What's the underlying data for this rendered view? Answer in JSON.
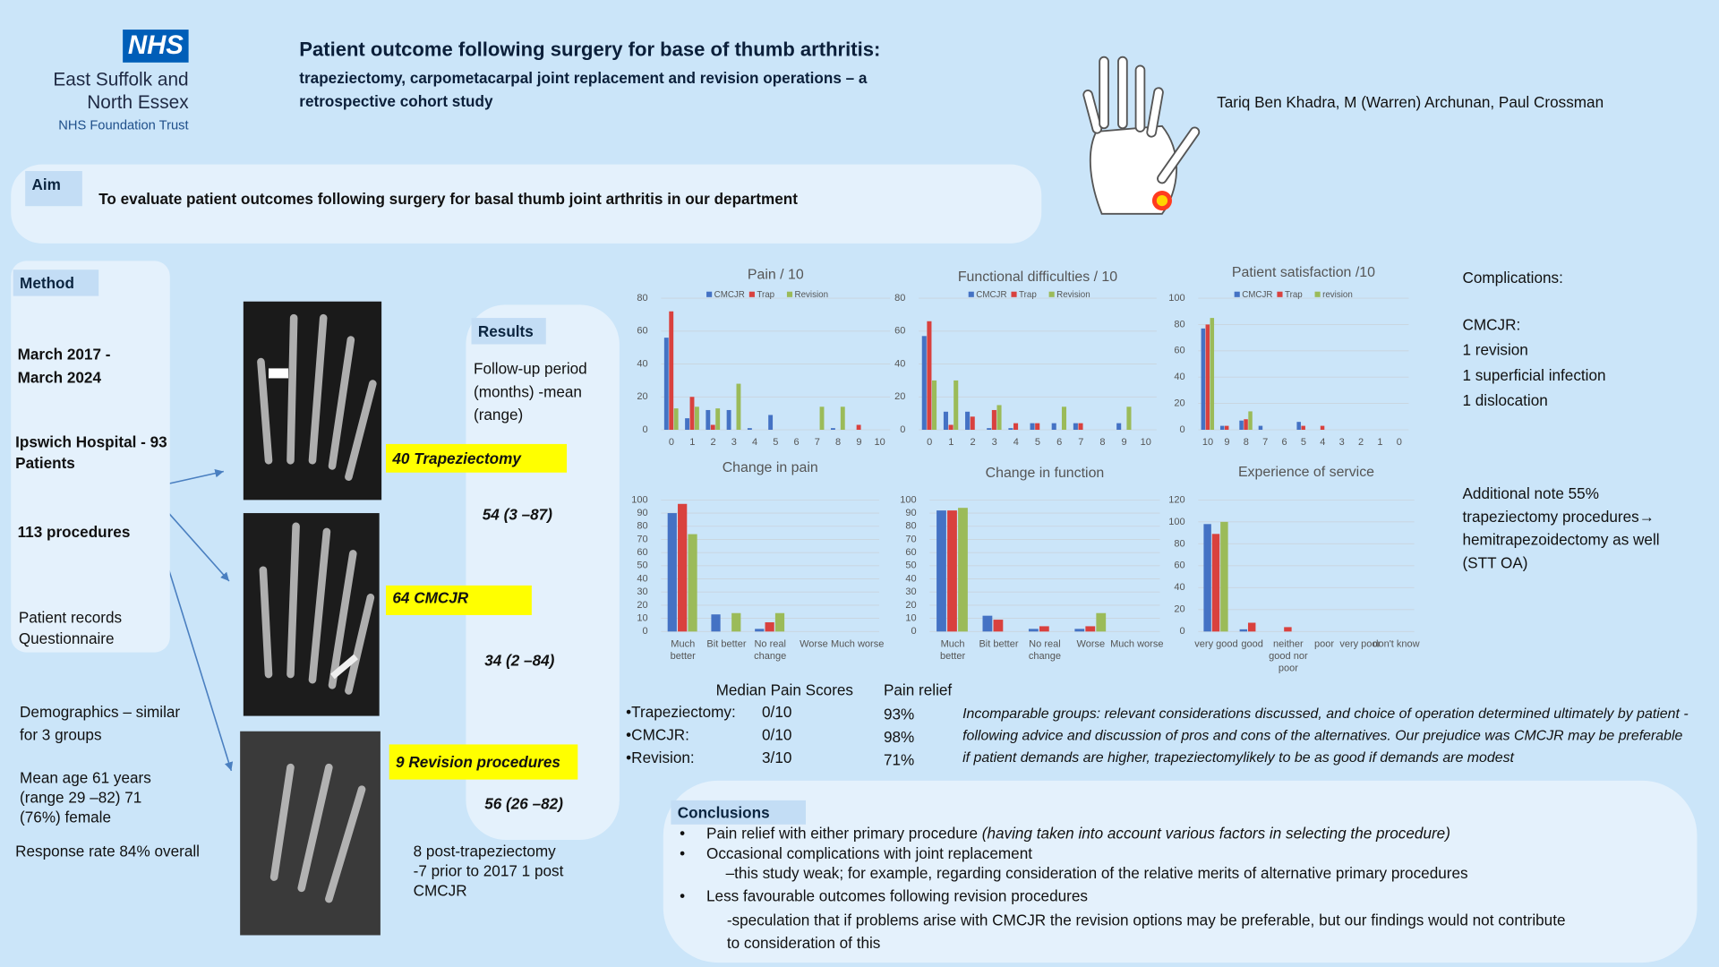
{
  "header": {
    "logo": "NHS",
    "org": [
      "East Suffolk and",
      "North Essex",
      "NHS Foundation Trust"
    ],
    "title": "Patient outcome following surgery for base of thumb arthritis:",
    "subtitle": "trapeziectomy, carpometacarpal joint replacement and revision operations – a retrospective cohort study",
    "authors": "Tariq Ben Khadra, M (Warren) Archunan, Paul Crossman"
  },
  "aim": {
    "label": "Aim",
    "text": "To evaluate  patient outcomes following surgery for basal thumb joint arthritis in our department"
  },
  "method": {
    "label": "Method",
    "items": [
      "March 2017 - March 2024",
      "Ipswich Hospital - 93 Patients",
      "113 procedures",
      "Patient records Questionnaire"
    ]
  },
  "demographics": [
    "Demographics – similar for 3 groups",
    "Mean age 61 years (range 29 –82) 71 (76%) female",
    "Response rate 84% overall"
  ],
  "results": {
    "label": "Results",
    "followup_heading": "Follow-up period (months) -mean (range)",
    "groups": [
      {
        "name": "40 Trapeziectomy",
        "followup": "54 (3 –87)"
      },
      {
        "name": "64 CMCJR",
        "followup": "34 (2 –84)"
      },
      {
        "name": "9 Revision procedures",
        "followup": "56 (26 –82)"
      }
    ],
    "revision_note": "8 post-trapeziectomy -7 prior to 2017 1 post CMCJR"
  },
  "pain_table": {
    "headers": [
      "Median Pain Scores",
      "Pain relief"
    ],
    "rows": [
      [
        "•Trapeziectomy:",
        "0/10",
        "93%"
      ],
      [
        "•CMCJR:",
        "0/10",
        "98%"
      ],
      [
        "•Revision:",
        "3/10",
        "71%"
      ]
    ]
  },
  "note": "Incomparable groups: relevant considerations discussed, and choice of operation determined ultimately by patient -following advice and discussion of pros and cons of the alternatives. Our prejudice was CMCJR may be preferable if patient demands are higher, trapeziectomylikely to be as good if demands are modest",
  "complications": [
    "Complications:",
    "CMCJR:",
    "1 revision",
    "1 superficial infection",
    "1 dislocation"
  ],
  "additional_note": "Additional note 55% trapeziectomy procedures→ hemitrapezoidectomy as well (STT OA)",
  "conclusions": {
    "label": "Conclusions",
    "items": [
      {
        "text": "Pain relief with either primary procedure",
        "note": "(having taken into account various factors in selecting the procedure)"
      },
      {
        "text": "Occasional complications with joint replacement",
        "sub": "–this study weak; for example, regarding consideration of the relative merits of alternative primary procedures"
      },
      {
        "text": "Less favourable outcomes following revision procedures",
        "sub": "-speculation that if problems arise with CMCJR the revision options may be preferable, but our findings would not contribute to consideration of this"
      }
    ]
  },
  "chart_data": [
    {
      "type": "bar",
      "title": "Pain / 10",
      "grid": true,
      "legend": "top",
      "categories": [
        "0",
        "1",
        "2",
        "3",
        "4",
        "5",
        "6",
        "7",
        "8",
        "9",
        "10"
      ],
      "series": [
        {
          "name": "CMCJR",
          "color": "#4472c4",
          "values": [
            56,
            7,
            12,
            12,
            1,
            9,
            0,
            0,
            1,
            0,
            0
          ]
        },
        {
          "name": "Trap",
          "color": "#d9413e",
          "values": [
            72,
            20,
            3,
            0,
            0,
            0,
            0,
            0,
            0,
            3,
            0
          ]
        },
        {
          "name": "Revision",
          "color": "#9bbb59",
          "values": [
            13,
            14,
            13,
            28,
            0,
            0,
            0,
            14,
            14,
            0,
            0
          ]
        }
      ],
      "ylim": [
        0,
        80
      ],
      "yticks": [
        0,
        20,
        40,
        60,
        80
      ]
    },
    {
      "type": "bar",
      "title": "Functional difficulties / 10",
      "grid": true,
      "legend": "top",
      "categories": [
        "0",
        "1",
        "2",
        "3",
        "4",
        "5",
        "6",
        "7",
        "8",
        "9",
        "10"
      ],
      "series": [
        {
          "name": "CMCJR",
          "color": "#4472c4",
          "values": [
            57,
            11,
            11,
            1,
            1,
            4,
            4,
            4,
            0,
            4,
            0
          ]
        },
        {
          "name": "Trap",
          "color": "#d9413e",
          "values": [
            66,
            3,
            8,
            12,
            4,
            4,
            0,
            4,
            0,
            0,
            0
          ]
        },
        {
          "name": "Revision",
          "color": "#9bbb59",
          "values": [
            30,
            30,
            0,
            15,
            0,
            0,
            14,
            0,
            0,
            14,
            0
          ]
        }
      ],
      "ylim": [
        0,
        80
      ],
      "yticks": [
        0,
        20,
        40,
        60,
        80
      ]
    },
    {
      "type": "bar",
      "title": "Patient satisfaction /10",
      "grid": true,
      "legend": "top",
      "categories": [
        "10",
        "9",
        "8",
        "7",
        "6",
        "5",
        "4",
        "3",
        "2",
        "1",
        "0"
      ],
      "series": [
        {
          "name": "CMCJR",
          "color": "#4472c4",
          "values": [
            77,
            3,
            7,
            3,
            0,
            6,
            0,
            0,
            0,
            0,
            0
          ]
        },
        {
          "name": "Trap",
          "color": "#d9413e",
          "values": [
            80,
            3,
            8,
            0,
            0,
            3,
            3,
            0,
            0,
            0,
            0
          ]
        },
        {
          "name": "revision",
          "color": "#9bbb59",
          "values": [
            85,
            0,
            14,
            0,
            0,
            0,
            0,
            0,
            0,
            0,
            0
          ]
        }
      ],
      "ylim": [
        0,
        100
      ],
      "yticks": [
        0,
        20,
        40,
        60,
        80,
        100
      ]
    },
    {
      "type": "bar",
      "title": "Change in pain",
      "grid": true,
      "categories": [
        "Much better",
        "Bit better",
        "No real change",
        "Worse",
        "Much worse"
      ],
      "series": [
        {
          "color": "#4472c4",
          "values": [
            90,
            13,
            2,
            0,
            0
          ]
        },
        {
          "color": "#d9413e",
          "values": [
            97,
            0,
            7,
            0,
            0
          ]
        },
        {
          "color": "#9bbb59",
          "values": [
            74,
            14,
            14,
            0,
            0
          ]
        }
      ],
      "ylim": [
        0,
        100
      ],
      "yticks": [
        0,
        10,
        20,
        30,
        40,
        50,
        60,
        70,
        80,
        90,
        100
      ]
    },
    {
      "type": "bar",
      "title": "Change in function",
      "grid": true,
      "categories": [
        "Much better",
        "Bit better",
        "No real change",
        "Worse",
        "Much worse"
      ],
      "series": [
        {
          "color": "#4472c4",
          "values": [
            92,
            12,
            2,
            2,
            0
          ]
        },
        {
          "color": "#d9413e",
          "values": [
            92,
            9,
            4,
            4,
            0
          ]
        },
        {
          "color": "#9bbb59",
          "values": [
            94,
            0,
            0,
            14,
            0
          ]
        }
      ],
      "ylim": [
        0,
        100
      ],
      "yticks": [
        0,
        10,
        20,
        30,
        40,
        50,
        60,
        70,
        80,
        90,
        100
      ]
    },
    {
      "type": "bar",
      "title": "Experience of service",
      "grid": true,
      "categories": [
        "very good",
        "good",
        "neither good nor poor",
        "poor",
        "very poor",
        "don't know"
      ],
      "series": [
        {
          "color": "#4472c4",
          "values": [
            98,
            2,
            0,
            0,
            0,
            0
          ]
        },
        {
          "color": "#d9413e",
          "values": [
            89,
            8,
            4,
            0,
            0,
            0
          ]
        },
        {
          "color": "#9bbb59",
          "values": [
            100,
            0,
            0,
            0,
            0,
            0
          ]
        }
      ],
      "ylim": [
        0,
        120
      ],
      "yticks": [
        0,
        20,
        40,
        60,
        80,
        100,
        120
      ]
    }
  ]
}
